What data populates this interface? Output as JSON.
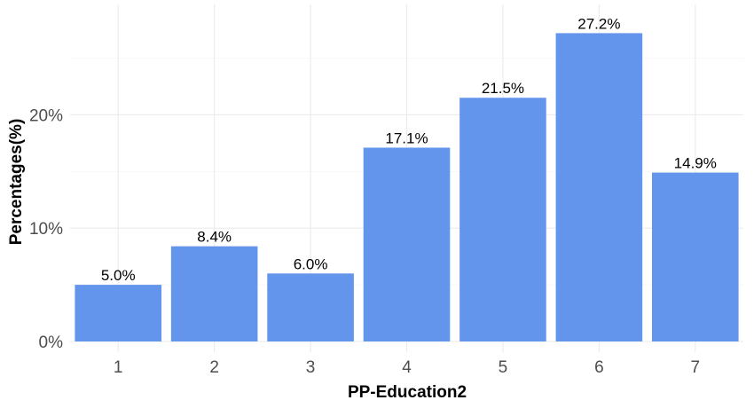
{
  "chart_data": {
    "type": "bar",
    "title": "",
    "xlabel": "PP-Education2",
    "ylabel": "Percentages(%)",
    "categories": [
      "1",
      "2",
      "3",
      "4",
      "5",
      "6",
      "7"
    ],
    "values": [
      5.0,
      8.4,
      6.0,
      17.1,
      21.5,
      27.2,
      14.9
    ],
    "value_labels": [
      "5.0%",
      "8.4%",
      "6.0%",
      "17.1%",
      "21.5%",
      "27.2%",
      "14.9%"
    ],
    "ylim": [
      0,
      29.8
    ],
    "yticks": [
      0,
      10,
      20
    ],
    "ytick_labels": [
      "0%",
      "10%",
      "20%"
    ],
    "grid": true,
    "legend": "none",
    "bar_color": "#6495ED"
  }
}
